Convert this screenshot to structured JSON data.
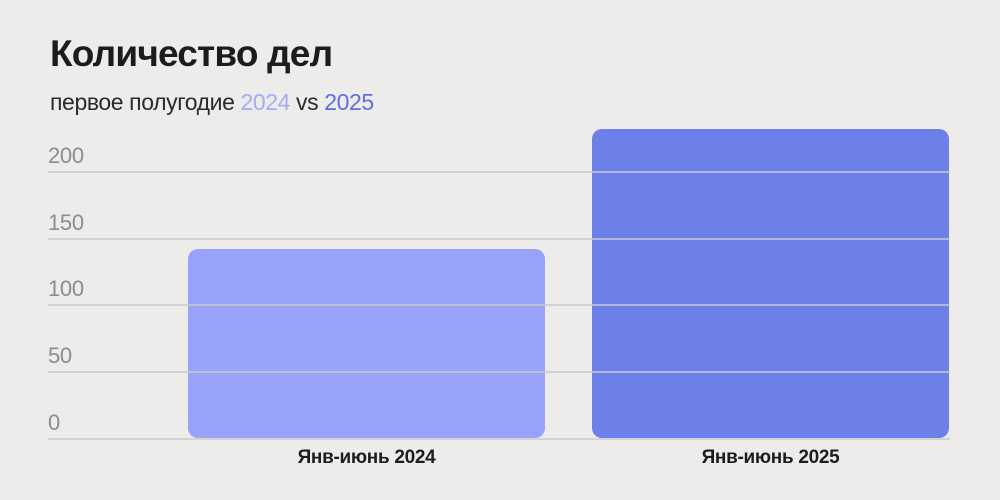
{
  "header": {
    "title": "Количество дел",
    "subtitle_prefix": "первое полугодие ",
    "subtitle_year1": "2024",
    "subtitle_vs": " vs ",
    "subtitle_year2": "2025"
  },
  "colors": {
    "background": "#edecea",
    "title_text": "#1c1c1c",
    "subtitle_text": "#2b2b2b",
    "year1_accent": "#a3adf4",
    "year2_accent": "#5b6fe6",
    "axis_text": "#8d8d8d",
    "gridline": "#c9c9c9",
    "category_text": "#1d1d1d",
    "bar_2024": "#98a2f8",
    "bar_2025": "#6d80ea"
  },
  "chart_data": {
    "type": "bar",
    "title": "Количество дел",
    "subtitle": "первое полугодие 2024 vs 2025",
    "categories": [
      "Янв-июнь 2024",
      "Янв-июнь 2025"
    ],
    "values": [
      142,
      232
    ],
    "bar_colors": [
      "#98a2f8",
      "#6d80ea"
    ],
    "yticks": [
      0,
      50,
      100,
      150,
      200
    ],
    "ylim": [
      0,
      240
    ],
    "xlabel": "",
    "ylabel": "",
    "grid": true,
    "legend": false,
    "gridlines_over_bars": true
  }
}
